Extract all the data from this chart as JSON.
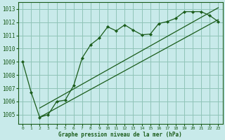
{
  "xlabel": "Graphe pression niveau de la mer (hPa)",
  "background_color": "#c8eaea",
  "grid_color": "#90c4b8",
  "line_color": "#1a5c1a",
  "xlim": [
    -0.5,
    23.5
  ],
  "ylim": [
    1004.3,
    1013.5
  ],
  "yticks": [
    1005,
    1006,
    1007,
    1008,
    1009,
    1010,
    1011,
    1012,
    1013
  ],
  "xticks": [
    0,
    1,
    2,
    3,
    4,
    5,
    6,
    7,
    8,
    9,
    10,
    11,
    12,
    13,
    14,
    15,
    16,
    17,
    18,
    19,
    20,
    21,
    22,
    23
  ],
  "series1_x": [
    0,
    1,
    2,
    3,
    4,
    5,
    6,
    7,
    8,
    9,
    10,
    11,
    12,
    13,
    14,
    15,
    16,
    17,
    18,
    19,
    20,
    21,
    22,
    23
  ],
  "series1_y": [
    1009.0,
    1006.7,
    1004.8,
    1005.0,
    1006.0,
    1006.1,
    1007.2,
    1009.3,
    1010.3,
    1010.8,
    1011.65,
    1011.35,
    1011.8,
    1011.4,
    1011.05,
    1011.1,
    1011.9,
    1012.05,
    1012.3,
    1012.8,
    1012.8,
    1012.8,
    1012.5,
    1012.05
  ],
  "trend1_x": [
    2,
    23
  ],
  "trend1_y": [
    1004.8,
    1012.2
  ],
  "trend2_x": [
    2,
    23
  ],
  "trend2_y": [
    1005.5,
    1013.1
  ]
}
